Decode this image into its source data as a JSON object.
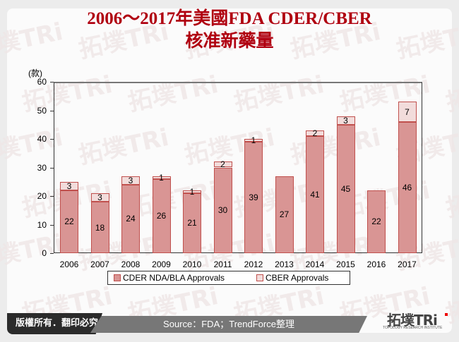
{
  "title": {
    "line1": "2006～2017年美國FDA CDER/CBER",
    "line2": "核准新藥量"
  },
  "chart_data": {
    "type": "bar",
    "stacked": true,
    "title": "2006～2017年美國FDA CDER/CBER 核准新藥量",
    "ylabel": "(款)",
    "xlabel": "",
    "ylim": [
      0,
      60
    ],
    "yticks": [
      "0",
      "10",
      "20",
      "30",
      "40",
      "50",
      "60"
    ],
    "categories": [
      "2006",
      "2007",
      "2008",
      "2009",
      "2010",
      "2011",
      "2012",
      "2013",
      "2014",
      "2015",
      "2016",
      "2017"
    ],
    "series": [
      {
        "name": "CDER NDA/BLA Approvals",
        "color": "#d99594",
        "values": [
          22,
          18,
          24,
          26,
          21,
          30,
          39,
          27,
          41,
          45,
          22,
          46
        ]
      },
      {
        "name": "CBER Approvals",
        "color": "#f2dcdb",
        "values": [
          3,
          3,
          3,
          1,
          1,
          2,
          1,
          0,
          2,
          3,
          0,
          7
        ]
      }
    ],
    "legend_position": "bottom",
    "grid": false
  },
  "footer": {
    "copyright": "版權所有．翻印必究",
    "source": "Source：FDA；TrendForce整理",
    "logo_main": "拓墣TRi",
    "logo_sub": "TOPOLOGY RESEARCH INSTITUTE"
  }
}
